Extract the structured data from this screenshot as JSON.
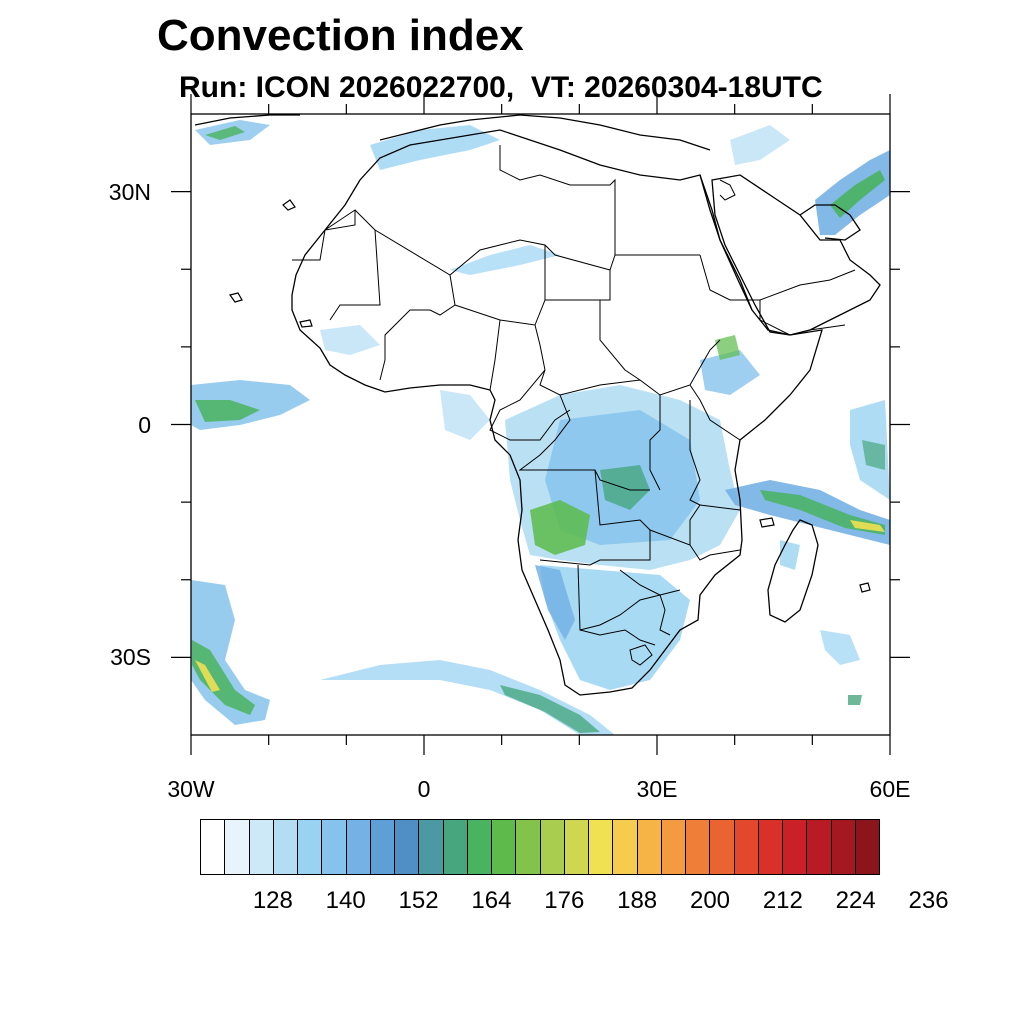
{
  "title": "Convection index",
  "subtitle": "Run: ICON 2026022700,  VT: 20260304-18UTC",
  "map": {
    "projection": "equirectangular",
    "lon_range": [
      -30,
      60
    ],
    "lat_range": [
      -40,
      40
    ],
    "lat_ticks": [
      {
        "value": 30,
        "label": "30N"
      },
      {
        "value": 0,
        "label": "0"
      },
      {
        "value": -30,
        "label": "30S"
      }
    ],
    "lon_ticks": [
      {
        "value": -30,
        "label": "30W"
      },
      {
        "value": 0,
        "label": "0"
      },
      {
        "value": 30,
        "label": "30E"
      },
      {
        "value": 60,
        "label": "60E"
      }
    ],
    "field_name": "Convection index",
    "regions_of_high_values": [
      "Central Africa (Congo, Angola, Zambia)",
      "Indian Ocean near Madagascar",
      "Southern Ocean southwest of South Africa",
      "Persian Gulf",
      "Equatorial Atlantic"
    ]
  },
  "colorbar": {
    "colors": [
      "#ffffff",
      "#e8f4fb",
      "#cde8f6",
      "#b3ddf3",
      "#9ad3f2",
      "#86c3ec",
      "#74b1e4",
      "#5f9fd8",
      "#4f8fc4",
      "#4a99a3",
      "#48a67f",
      "#4ab35f",
      "#5cbb4a",
      "#84c34b",
      "#a9cd4f",
      "#cfd64f",
      "#efe152",
      "#f6cc4e",
      "#f6b447",
      "#f49a40",
      "#ef7e38",
      "#ea6431",
      "#e3482c",
      "#d93029",
      "#ca2027",
      "#b81b24",
      "#a51820",
      "#8c151c"
    ],
    "labels": [
      "128",
      "140",
      "152",
      "164",
      "176",
      "188",
      "200",
      "212",
      "224",
      "236"
    ]
  }
}
